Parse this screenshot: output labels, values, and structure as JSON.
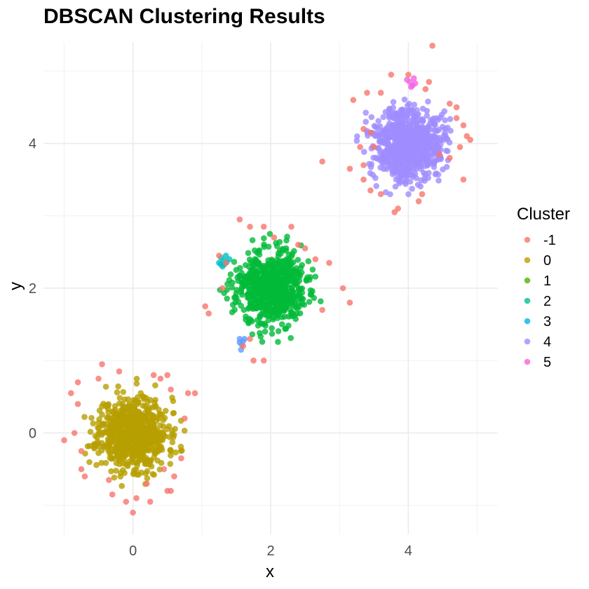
{
  "chart_data": {
    "type": "scatter",
    "title": "DBSCAN Clustering Results",
    "xlabel": "x",
    "ylabel": "y",
    "xlim": [
      -1.3,
      5.3
    ],
    "ylim": [
      -1.4,
      5.4
    ],
    "x_ticks": [
      0,
      2,
      4
    ],
    "y_ticks": [
      0,
      2,
      4
    ],
    "x_tick_labels": [
      "0",
      "2",
      "4"
    ],
    "y_tick_labels": [
      "0",
      "2",
      "4"
    ],
    "grid": true,
    "legend_position": "right",
    "legend_title": "Cluster",
    "point_opacity": 0.8,
    "series": [
      {
        "name": "-1",
        "color": "#F8766D",
        "n": 0,
        "points": [
          [
            -1.0,
            -0.1
          ],
          [
            -0.9,
            0.55
          ],
          [
            -0.8,
            0.7
          ],
          [
            -0.7,
            -0.6
          ],
          [
            -0.75,
            -0.5
          ],
          [
            -0.5,
            0.75
          ],
          [
            -0.45,
            0.95
          ],
          [
            -0.35,
            -0.65
          ],
          [
            -0.3,
            -0.85
          ],
          [
            -0.2,
            0.85
          ],
          [
            -0.1,
            -0.95
          ],
          [
            0.0,
            -1.1
          ],
          [
            0.05,
            -0.9
          ],
          [
            0.2,
            -0.7
          ],
          [
            0.25,
            -0.95
          ],
          [
            0.3,
            0.8
          ],
          [
            0.4,
            0.75
          ],
          [
            0.45,
            -0.5
          ],
          [
            0.5,
            -0.8
          ],
          [
            0.55,
            0.6
          ],
          [
            0.5,
            0.8
          ],
          [
            0.55,
            -0.8
          ],
          [
            0.6,
            -0.6
          ],
          [
            0.8,
            0.55
          ],
          [
            0.9,
            0.55
          ],
          [
            -0.85,
            0.0
          ],
          [
            -0.8,
            0.4
          ],
          [
            -0.75,
            -0.25
          ],
          [
            0.75,
            0.2
          ],
          [
            0.7,
            -0.35
          ],
          [
            1.05,
            1.75
          ],
          [
            1.35,
            2.35
          ],
          [
            1.55,
            2.95
          ],
          [
            1.7,
            2.85
          ],
          [
            1.9,
            2.85
          ],
          [
            2.3,
            2.85
          ],
          [
            2.05,
            2.7
          ],
          [
            2.4,
            2.6
          ],
          [
            2.5,
            2.55
          ],
          [
            2.65,
            2.4
          ],
          [
            2.85,
            2.35
          ],
          [
            3.05,
            2.0
          ],
          [
            3.15,
            1.8
          ],
          [
            2.75,
            1.7
          ],
          [
            1.6,
            1.2
          ],
          [
            1.75,
            1.0
          ],
          [
            1.9,
            1.0
          ],
          [
            1.7,
            1.3
          ],
          [
            1.3,
            2.0
          ],
          [
            1.25,
            2.45
          ],
          [
            1.1,
            1.65
          ],
          [
            2.75,
            3.75
          ],
          [
            3.15,
            3.65
          ],
          [
            3.2,
            4.6
          ],
          [
            3.4,
            4.7
          ],
          [
            3.35,
            4.2
          ],
          [
            3.3,
            3.95
          ],
          [
            3.35,
            3.5
          ],
          [
            3.45,
            3.35
          ],
          [
            3.6,
            3.3
          ],
          [
            3.8,
            3.05
          ],
          [
            3.85,
            3.1
          ],
          [
            3.75,
            4.95
          ],
          [
            3.6,
            4.7
          ],
          [
            4.0,
            4.95
          ],
          [
            4.25,
            4.75
          ],
          [
            4.35,
            5.35
          ],
          [
            4.3,
            4.85
          ],
          [
            4.6,
            4.55
          ],
          [
            4.7,
            4.5
          ],
          [
            4.7,
            4.35
          ],
          [
            4.8,
            4.25
          ],
          [
            4.85,
            4.1
          ],
          [
            4.9,
            4.05
          ],
          [
            4.75,
            3.95
          ],
          [
            4.8,
            3.5
          ],
          [
            4.6,
            3.8
          ],
          [
            4.45,
            3.85
          ],
          [
            4.2,
            3.3
          ],
          [
            4.15,
            3.2
          ],
          [
            3.5,
            3.95
          ],
          [
            3.45,
            4.15
          ],
          [
            3.35,
            3.7
          ]
        ]
      },
      {
        "name": "0",
        "color": "#B79F00",
        "n": 700,
        "center": [
          0.0,
          0.0
        ],
        "sd": 0.25,
        "seed": 11
      },
      {
        "name": "1",
        "color": "#00BA38",
        "n": 700,
        "center": [
          2.0,
          2.0
        ],
        "sd": 0.25,
        "seed": 23
      },
      {
        "name": "2",
        "color": "#00BFC4",
        "n": 0,
        "points": [
          [
            1.25,
            2.35
          ],
          [
            1.28,
            2.42
          ],
          [
            1.32,
            2.38
          ],
          [
            1.35,
            2.45
          ],
          [
            1.3,
            2.3
          ],
          [
            1.4,
            2.4
          ],
          [
            1.28,
            2.33
          ],
          [
            1.36,
            2.36
          ]
        ]
      },
      {
        "name": "3",
        "color": "#619CFF",
        "n": 0,
        "points": [
          [
            1.55,
            1.3
          ],
          [
            1.6,
            1.27
          ],
          [
            1.58,
            1.22
          ],
          [
            1.57,
            1.15
          ],
          [
            1.62,
            1.3
          ],
          [
            1.55,
            1.25
          ]
        ]
      },
      {
        "name": "4",
        "color": "#9F8CFF",
        "n": 700,
        "center": [
          4.0,
          4.0
        ],
        "sd": 0.25,
        "seed": 37
      },
      {
        "name": "5",
        "color": "#F564E3",
        "n": 0,
        "points": [
          [
            3.98,
            4.88
          ],
          [
            4.02,
            4.85
          ],
          [
            4.06,
            4.8
          ],
          [
            4.08,
            4.9
          ],
          [
            4.1,
            4.83
          ],
          [
            4.04,
            4.78
          ]
        ]
      }
    ],
    "legend_colors": [
      "#F8766D",
      "#C49A00",
      "#53B400",
      "#00C094",
      "#00B6EB",
      "#A58AFF",
      "#FB61D7"
    ]
  }
}
